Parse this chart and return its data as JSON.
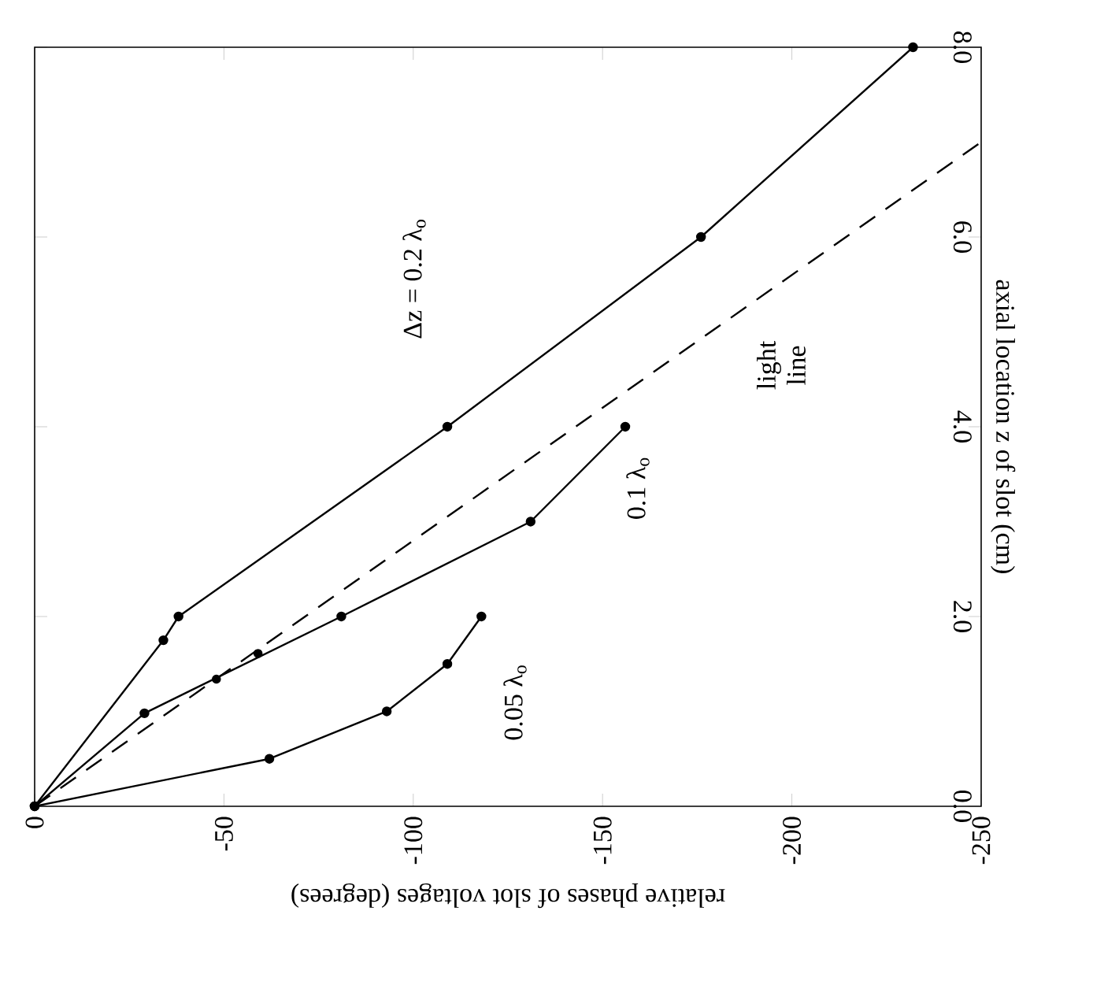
{
  "chart_data": {
    "type": "line",
    "xlabel": "relative phases of slot voltages (degrees)",
    "ylabel": "axial location z of slot (cm)",
    "xlim": [
      0,
      -250
    ],
    "xticks": [
      0,
      -50,
      -100,
      -150,
      -200,
      -250
    ],
    "ylim": [
      0,
      8
    ],
    "yticks": [
      {
        "value": 0,
        "label": "0.0"
      },
      {
        "value": 2,
        "label": "2.0"
      },
      {
        "value": 4,
        "label": "4.0"
      },
      {
        "value": 6,
        "label": "6.0"
      },
      {
        "value": 8,
        "label": "8.0"
      }
    ],
    "marker": "circle",
    "line_style": "solid",
    "series": [
      {
        "color": "#000000",
        "x": [
          0,
          -34,
          -38,
          -109,
          -176,
          -232
        ],
        "values": [
          0,
          1.75,
          2.0,
          4.0,
          6.0,
          8.0
        ]
      },
      {
        "color": "#000000",
        "x": [
          0,
          -29,
          -81,
          -131,
          -156
        ],
        "values": [
          0,
          0.98,
          2.0,
          3.0,
          4.0
        ]
      },
      {
        "color": "#000000",
        "x": [
          0,
          -62,
          -93,
          -109,
          -118
        ],
        "values": [
          0,
          0.5,
          1.0,
          1.5,
          2.0
        ]
      },
      {
        "color": "#000000",
        "x": [
          0,
          -250
        ],
        "values": [
          0,
          7.0
        ],
        "marker": "none",
        "line_style": "dashed"
      },
      {
        "type": "scatter",
        "color": "#000000",
        "x": [
          -48,
          -59
        ],
        "values": [
          1.34,
          1.61
        ]
      }
    ],
    "annotations": [
      "Δz = 0.2 λ$_{o}$",
      "0.1 λ$_{o}$",
      "0.05 λ$_{o}$",
      "light line"
    ]
  }
}
